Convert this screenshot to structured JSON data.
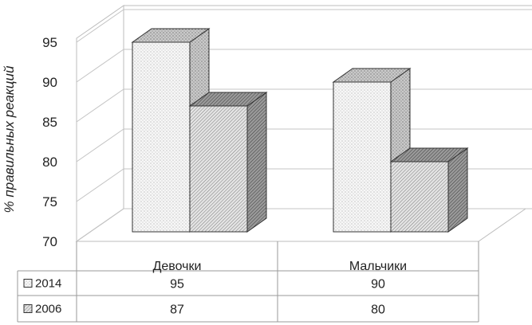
{
  "chart_data": {
    "type": "bar",
    "ylabel": "% правильных реакций",
    "ylim": [
      70,
      95
    ],
    "yticks": [
      70,
      75,
      80,
      85,
      90,
      95
    ],
    "categories": [
      "Девочки",
      "Мальчики"
    ],
    "series": [
      {
        "name": "2014",
        "values": [
          95,
          90
        ],
        "color": "#f4f4f4",
        "pattern": "fine-dots"
      },
      {
        "name": "2006",
        "values": [
          87,
          80
        ],
        "color": "#cfcfcf",
        "pattern": "dense-hatch"
      }
    ],
    "grid": true,
    "legend": "data-table-below",
    "three_d": true
  }
}
